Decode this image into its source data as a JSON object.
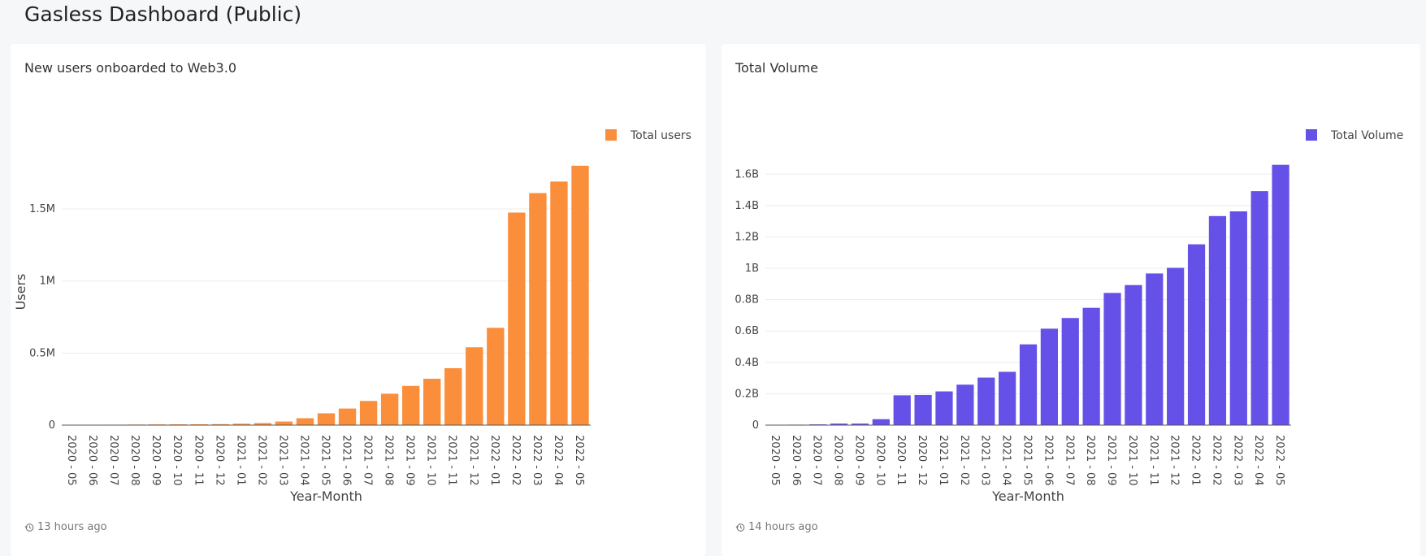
{
  "page": {
    "title": "Gasless Dashboard (Public)"
  },
  "colors": {
    "users_bar": "#fb8e3b",
    "volume_bar": "#6550e8",
    "gridline": "#ececec",
    "axis": "#555555"
  },
  "cards": [
    {
      "title": "New users onboarded to Web3.0",
      "updated": "13 hours ago",
      "updated_icon": "history-icon"
    },
    {
      "title": "Total Volume",
      "updated": "14 hours ago",
      "updated_icon": "history-icon"
    }
  ],
  "chart_data": [
    {
      "type": "bar",
      "title": "New users onboarded to Web3.0",
      "xlabel": "Year-Month",
      "ylabel": "Users",
      "ylim": [
        0,
        1850000
      ],
      "yticks": [
        0,
        500000,
        1000000,
        1500000
      ],
      "ytick_labels": [
        "0",
        "0.5M",
        "1M",
        "1.5M"
      ],
      "grid": true,
      "legend_position": "top-right",
      "categories": [
        "2020 - 05",
        "2020 - 06",
        "2020 - 07",
        "2020 - 08",
        "2020 - 09",
        "2020 - 10",
        "2020 - 11",
        "2020 - 12",
        "2021 - 01",
        "2021 - 02",
        "2021 - 03",
        "2021 - 04",
        "2021 - 05",
        "2021 - 06",
        "2021 - 07",
        "2021 - 08",
        "2021 - 09",
        "2021 - 10",
        "2021 - 11",
        "2021 - 12",
        "2022 - 01",
        "2022 - 02",
        "2022 - 03",
        "2022 - 04",
        "2022 - 05"
      ],
      "series": [
        {
          "name": "Total users",
          "color": "#fb8e3b",
          "values": [
            1000,
            2000,
            3000,
            4000,
            5000,
            5500,
            6000,
            7000,
            10000,
            14000,
            25000,
            48000,
            82000,
            115000,
            168000,
            218000,
            272000,
            322000,
            395000,
            540000,
            675000,
            1475000,
            1610000,
            1690000,
            1800000
          ]
        }
      ]
    },
    {
      "type": "bar",
      "title": "Total Volume",
      "xlabel": "Year-Month",
      "ylabel": "",
      "ylim": [
        0,
        1700000000
      ],
      "yticks": [
        0,
        200000000,
        400000000,
        600000000,
        800000000,
        1000000000,
        1200000000,
        1400000000,
        1600000000
      ],
      "ytick_labels": [
        "0",
        "0.2B",
        "0.4B",
        "0.6B",
        "0.8B",
        "1B",
        "1.2B",
        "1.4B",
        "1.6B"
      ],
      "grid": true,
      "legend_position": "top-right",
      "categories": [
        "2020 - 05",
        "2020 - 06",
        "2020 - 07",
        "2020 - 08",
        "2020 - 09",
        "2020 - 10",
        "2020 - 11",
        "2020 - 12",
        "2021 - 01",
        "2021 - 02",
        "2021 - 03",
        "2021 - 04",
        "2021 - 05",
        "2021 - 06",
        "2021 - 07",
        "2021 - 08",
        "2021 - 09",
        "2021 - 10",
        "2021 - 11",
        "2021 - 12",
        "2022 - 01",
        "2022 - 02",
        "2022 - 03",
        "2022 - 04",
        "2022 - 05"
      ],
      "series": [
        {
          "name": "Total Volume",
          "color": "#6550e8",
          "values": [
            2000000,
            3000000,
            5000000,
            10000000,
            10000000,
            38000000,
            190000000,
            192000000,
            215000000,
            258000000,
            303000000,
            340000000,
            515000000,
            615000000,
            683000000,
            748000000,
            843000000,
            893000000,
            967000000,
            1003000000,
            1153000000,
            1333000000,
            1363000000,
            1492000000,
            1660000000
          ]
        }
      ]
    }
  ]
}
